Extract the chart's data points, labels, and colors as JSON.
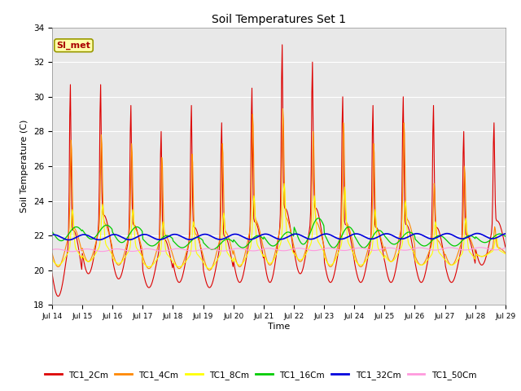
{
  "title": "Soil Temperatures Set 1",
  "xlabel": "Time",
  "ylabel": "Soil Temperature (C)",
  "ylim": [
    18,
    34
  ],
  "series_names": [
    "TC1_2Cm",
    "TC1_4Cm",
    "TC1_8Cm",
    "TC1_16Cm",
    "TC1_32Cm",
    "TC1_50Cm"
  ],
  "series_colors": [
    "#dd0000",
    "#ff8800",
    "#ffff00",
    "#00cc00",
    "#0000dd",
    "#ff99dd"
  ],
  "annotation_text": "SI_met",
  "annotation_color": "#aa0000",
  "annotation_bg": "#ffffaa",
  "background_color": "#e8e8e8",
  "n_days": 15,
  "points_per_day": 48,
  "start_day": 14,
  "peak_2cm": [
    30.7,
    30.7,
    29.5,
    28.0,
    29.5,
    28.5,
    30.5,
    33.0,
    32.0,
    30.0,
    29.5,
    30.0,
    29.5,
    28.0,
    28.5
  ],
  "trough_2cm": [
    18.5,
    19.8,
    19.5,
    19.0,
    19.3,
    19.0,
    19.3,
    19.3,
    19.8,
    19.3,
    19.3,
    19.3,
    19.3,
    19.3,
    20.3
  ],
  "peak_4cm": [
    27.5,
    27.8,
    27.3,
    26.5,
    26.7,
    27.3,
    29.0,
    29.3,
    28.0,
    28.5,
    27.3,
    28.5,
    25.0,
    26.0,
    22.5
  ],
  "trough_4cm": [
    20.2,
    20.5,
    20.3,
    20.1,
    20.1,
    20.0,
    20.2,
    20.3,
    20.5,
    20.2,
    20.2,
    20.5,
    20.3,
    20.3,
    20.8
  ],
  "peak_8cm": [
    23.5,
    23.8,
    23.5,
    22.8,
    22.8,
    23.3,
    24.3,
    25.0,
    24.3,
    24.8,
    23.5,
    24.0,
    22.8,
    23.0,
    22.0
  ],
  "trough_8cm": [
    20.3,
    20.5,
    20.4,
    20.2,
    20.2,
    20.1,
    20.3,
    20.4,
    20.6,
    20.3,
    20.3,
    20.5,
    20.3,
    20.3,
    20.8
  ],
  "peak_16cm": [
    22.5,
    22.6,
    22.5,
    22.0,
    21.9,
    21.8,
    22.0,
    22.2,
    23.0,
    22.5,
    22.3,
    22.2,
    22.0,
    22.0,
    22.1
  ],
  "trough_16cm": [
    21.7,
    21.8,
    21.6,
    21.4,
    21.3,
    21.2,
    21.3,
    21.4,
    21.5,
    21.3,
    21.3,
    21.5,
    21.4,
    21.4,
    21.6
  ],
  "base_32cm": 21.9,
  "amp_32cm": 0.15,
  "base_50cm": 21.15,
  "amp_50cm": 0.07
}
